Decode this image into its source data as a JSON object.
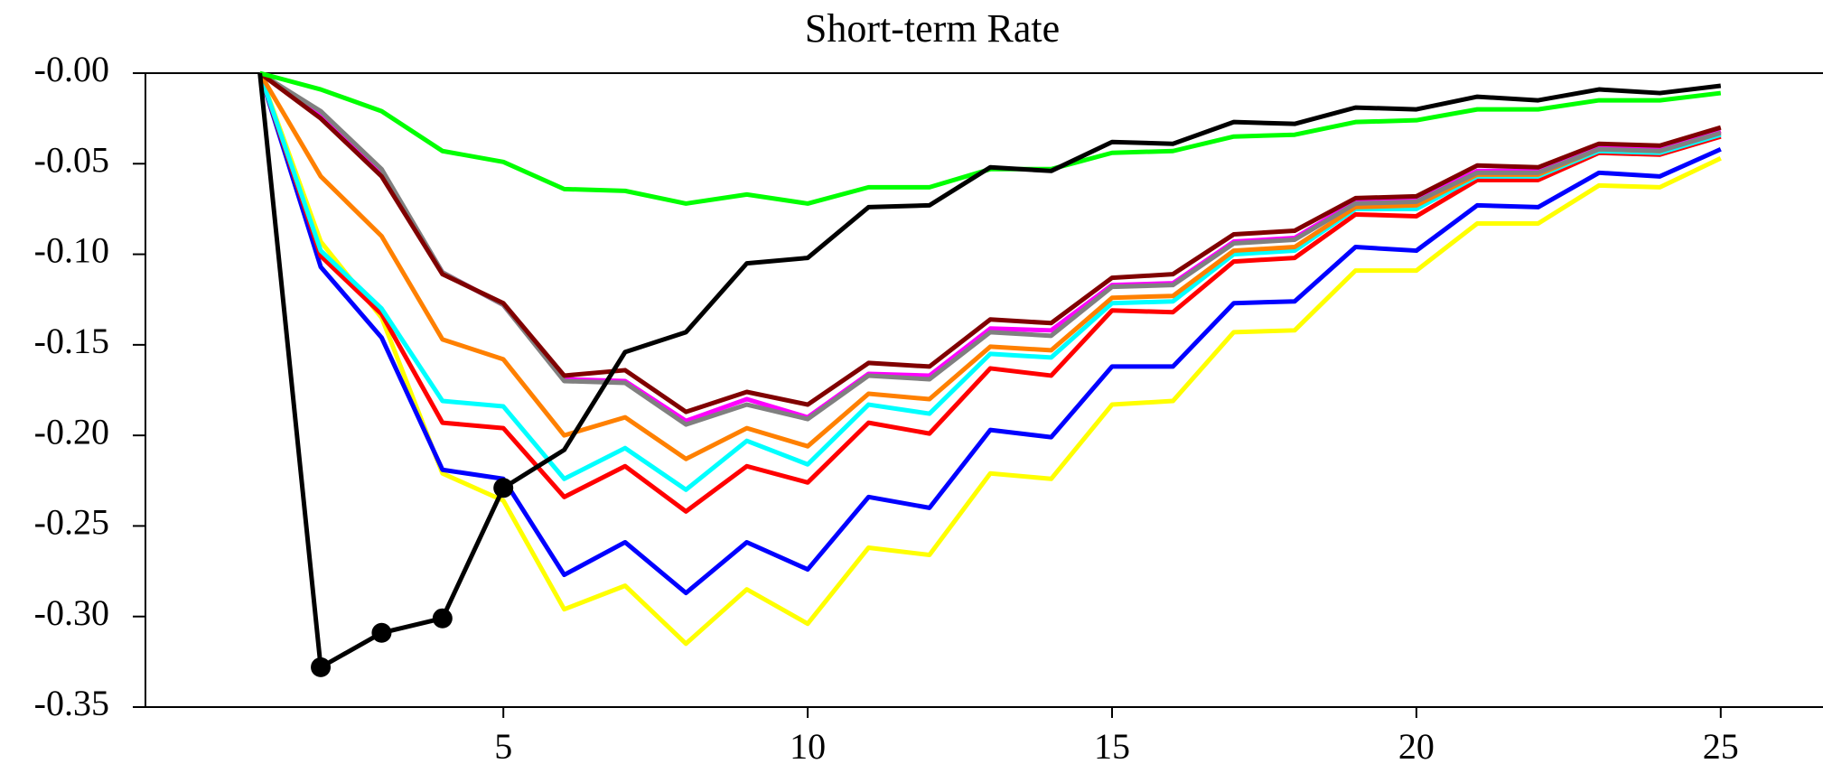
{
  "chart_data": {
    "type": "line",
    "title": "Short-term Rate",
    "x": [
      1,
      2,
      3,
      4,
      5,
      6,
      7,
      8,
      9,
      10,
      11,
      12,
      13,
      14,
      15,
      16,
      17,
      18,
      19,
      20,
      21,
      22,
      23,
      24,
      25
    ],
    "xlim": [
      -0.88,
      26.68
    ],
    "xticks": [
      5,
      10,
      15,
      20,
      25
    ],
    "ylim": [
      -0.35,
      0
    ],
    "yticks": [
      {
        "value": 0,
        "label": "-0.00"
      },
      -0.05,
      {
        "value": -0.1,
        "label": "-0.10"
      },
      -0.15,
      {
        "value": -0.2,
        "label": "-0.20"
      },
      -0.25,
      {
        "value": -0.3,
        "label": "-0.30"
      },
      -0.35
    ],
    "series": [
      {
        "color": "#ffff00",
        "values": [
          0,
          -0.093,
          -0.135,
          -0.221,
          -0.236,
          -0.296,
          -0.283,
          -0.315,
          -0.285,
          -0.304,
          -0.262,
          -0.266,
          -0.221,
          -0.224,
          -0.183,
          -0.181,
          -0.143,
          -0.142,
          -0.109,
          -0.109,
          -0.083,
          -0.083,
          -0.062,
          -0.063,
          -0.047
        ]
      },
      {
        "color": "#0000ff",
        "values": [
          0,
          -0.107,
          -0.146,
          -0.219,
          -0.224,
          -0.277,
          -0.259,
          -0.287,
          -0.259,
          -0.274,
          -0.234,
          -0.24,
          -0.197,
          -0.201,
          -0.162,
          -0.162,
          -0.127,
          -0.126,
          -0.096,
          -0.098,
          -0.073,
          -0.074,
          -0.055,
          -0.057,
          -0.042
        ]
      },
      {
        "color": "#ff0000",
        "values": [
          0,
          -0.101,
          -0.133,
          -0.193,
          -0.196,
          -0.234,
          -0.217,
          -0.242,
          -0.217,
          -0.226,
          -0.193,
          -0.199,
          -0.163,
          -0.167,
          -0.131,
          -0.132,
          -0.104,
          -0.102,
          -0.078,
          -0.079,
          -0.059,
          -0.059,
          -0.044,
          -0.045,
          -0.035
        ]
      },
      {
        "color": "#00ffff",
        "values": [
          0,
          -0.098,
          -0.13,
          -0.181,
          -0.184,
          -0.224,
          -0.207,
          -0.23,
          -0.203,
          -0.216,
          -0.183,
          -0.188,
          -0.155,
          -0.157,
          -0.127,
          -0.126,
          -0.1,
          -0.098,
          -0.075,
          -0.075,
          -0.057,
          -0.057,
          -0.043,
          -0.044,
          -0.034
        ]
      },
      {
        "color": "#ff8000",
        "values": [
          0,
          -0.057,
          -0.09,
          -0.147,
          -0.158,
          -0.2,
          -0.19,
          -0.213,
          -0.196,
          -0.206,
          -0.177,
          -0.18,
          -0.151,
          -0.153,
          -0.124,
          -0.123,
          -0.098,
          -0.096,
          -0.074,
          -0.073,
          -0.056,
          -0.056,
          -0.042,
          -0.043,
          -0.032
        ]
      },
      {
        "color": "#ff00ff",
        "values": [
          0,
          -0.022,
          -0.054,
          -0.11,
          -0.128,
          -0.169,
          -0.17,
          -0.192,
          -0.18,
          -0.19,
          -0.166,
          -0.167,
          -0.141,
          -0.142,
          -0.117,
          -0.116,
          -0.093,
          -0.091,
          -0.071,
          -0.07,
          -0.054,
          -0.054,
          -0.041,
          -0.042,
          -0.032
        ]
      },
      {
        "color": "#808080",
        "values": [
          0,
          -0.021,
          -0.053,
          -0.11,
          -0.128,
          -0.17,
          -0.171,
          -0.194,
          -0.183,
          -0.191,
          -0.167,
          -0.169,
          -0.143,
          -0.145,
          -0.118,
          -0.117,
          -0.094,
          -0.092,
          -0.072,
          -0.071,
          -0.055,
          -0.055,
          -0.042,
          -0.043,
          -0.033
        ]
      },
      {
        "color": "#800000",
        "values": [
          0,
          -0.025,
          -0.057,
          -0.111,
          -0.127,
          -0.167,
          -0.164,
          -0.187,
          -0.176,
          -0.183,
          -0.16,
          -0.162,
          -0.136,
          -0.138,
          -0.113,
          -0.111,
          -0.089,
          -0.087,
          -0.069,
          -0.068,
          -0.051,
          -0.052,
          -0.039,
          -0.04,
          -0.03
        ]
      },
      {
        "color": "#00ff00",
        "values": [
          0,
          -0.009,
          -0.021,
          -0.043,
          -0.049,
          -0.064,
          -0.065,
          -0.072,
          -0.067,
          -0.072,
          -0.063,
          -0.063,
          -0.053,
          -0.053,
          -0.044,
          -0.043,
          -0.035,
          -0.034,
          -0.027,
          -0.026,
          -0.02,
          -0.02,
          -0.015,
          -0.015,
          -0.011
        ]
      },
      {
        "color": "#000000",
        "values": [
          0,
          -0.328,
          -0.309,
          -0.301,
          -0.229,
          -0.208,
          -0.154,
          -0.143,
          -0.105,
          -0.102,
          -0.074,
          -0.073,
          -0.052,
          -0.054,
          -0.038,
          -0.039,
          -0.027,
          -0.028,
          -0.019,
          -0.02,
          -0.013,
          -0.015,
          -0.009,
          -0.011,
          -0.007
        ]
      },
      {
        "color": "#000000",
        "marker": true,
        "values": [
          null,
          -0.328,
          -0.309,
          -0.301,
          -0.229,
          null,
          null,
          null,
          null,
          null,
          null,
          null,
          null,
          null,
          null,
          null,
          null,
          null,
          null,
          null,
          null,
          null,
          null,
          null,
          null
        ]
      }
    ]
  }
}
